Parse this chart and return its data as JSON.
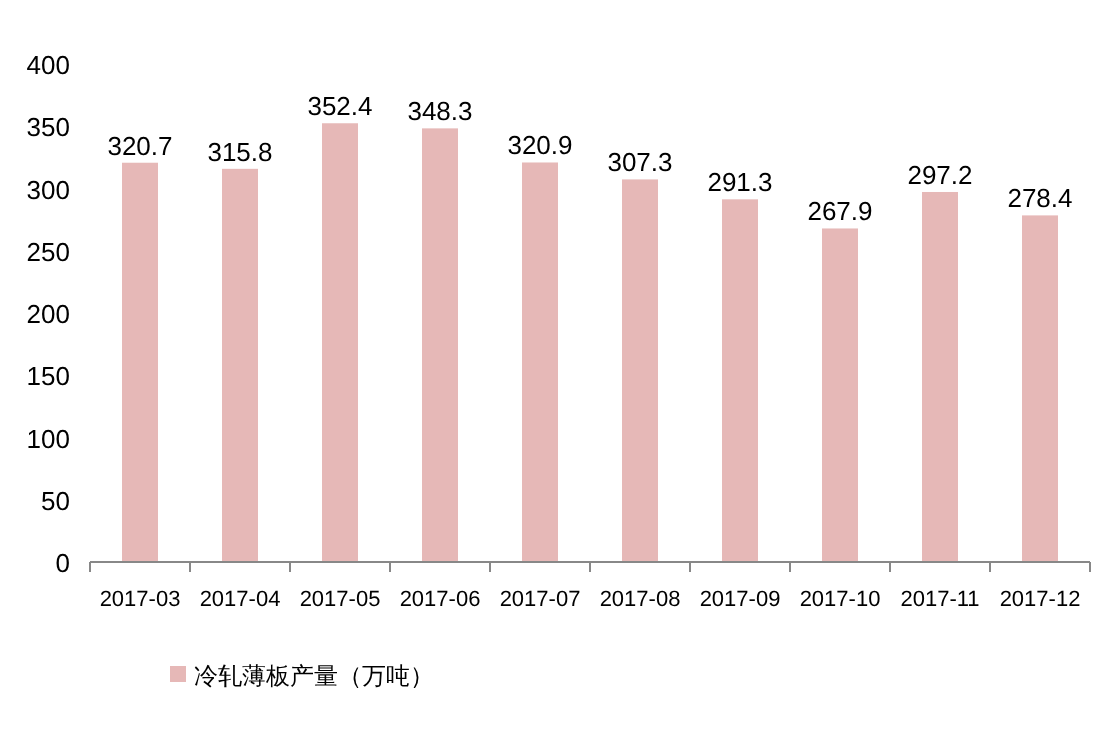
{
  "chart_data": {
    "type": "bar",
    "categories": [
      "2017-03",
      "2017-04",
      "2017-05",
      "2017-06",
      "2017-07",
      "2017-08",
      "2017-09",
      "2017-10",
      "2017-11",
      "2017-12"
    ],
    "series": [
      {
        "name": "冷轧薄板产量（万吨）",
        "color": "#e6b8b7",
        "values": [
          320.7,
          315.8,
          352.4,
          348.3,
          320.9,
          307.3,
          291.3,
          267.9,
          297.2,
          278.4
        ]
      }
    ],
    "ylim": [
      0,
      400
    ],
    "yticks": [
      0,
      50,
      100,
      150,
      200,
      250,
      300,
      350,
      400
    ],
    "data_labels": true,
    "legend": "bottom",
    "grid": false
  }
}
